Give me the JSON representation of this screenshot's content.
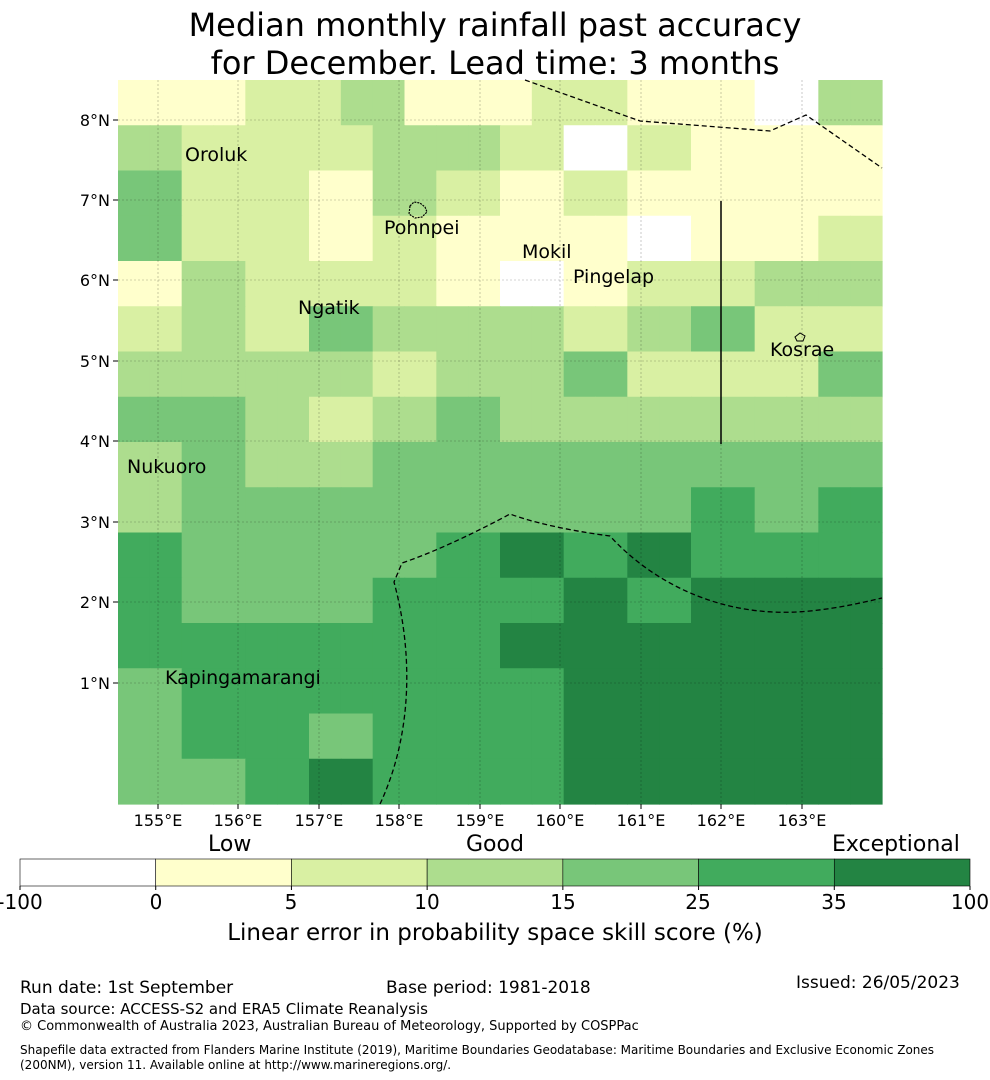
{
  "title": {
    "line1": "Median monthly rainfall past accuracy",
    "line2": "for December. Lead time: 3 months"
  },
  "map": {
    "y_axis_labels": [
      "8°N",
      "7°N",
      "6°N",
      "5°N",
      "4°N",
      "3°N",
      "2°N",
      "1°N"
    ],
    "x_axis_labels": [
      "155°E",
      "156°E",
      "157°E",
      "158°E",
      "159°E",
      "160°E",
      "161°E",
      "162°E",
      "163°E"
    ],
    "places": [
      {
        "name": "Oroluk"
      },
      {
        "name": "Pohnpei"
      },
      {
        "name": "Mokil"
      },
      {
        "name": "Pingelap"
      },
      {
        "name": "Ngatik"
      },
      {
        "name": "Kosrae"
      },
      {
        "name": "Nukuoro"
      },
      {
        "name": "Kapingamarangi"
      }
    ],
    "category_colors": [
      "#ffffff",
      "#ffffcc",
      "#d9f0a3",
      "#addd8e",
      "#78c679",
      "#41ab5d",
      "#238443"
    ],
    "grid": [
      [
        1,
        1,
        1,
        1,
        2,
        2,
        2,
        3,
        3,
        1,
        1,
        1,
        1,
        2,
        2,
        2,
        1,
        1,
        1,
        1,
        0,
        0,
        3,
        3
      ],
      [
        3,
        3,
        2,
        2,
        2,
        2,
        2,
        2,
        3,
        3,
        3,
        3,
        2,
        2,
        0,
        0,
        2,
        2,
        1,
        1,
        1,
        1,
        1,
        1
      ],
      [
        4,
        4,
        2,
        2,
        2,
        2,
        1,
        1,
        3,
        3,
        2,
        2,
        1,
        1,
        2,
        2,
        1,
        1,
        1,
        1,
        1,
        1,
        1,
        1
      ],
      [
        4,
        4,
        2,
        2,
        2,
        2,
        1,
        1,
        2,
        2,
        1,
        1,
        1,
        1,
        1,
        1,
        0,
        0,
        1,
        1,
        1,
        1,
        2,
        2
      ],
      [
        1,
        1,
        3,
        3,
        2,
        2,
        2,
        2,
        2,
        2,
        1,
        1,
        0,
        0,
        1,
        1,
        2,
        2,
        2,
        2,
        3,
        3,
        3,
        3
      ],
      [
        2,
        2,
        3,
        3,
        2,
        2,
        4,
        4,
        3,
        3,
        3,
        3,
        3,
        3,
        2,
        2,
        3,
        3,
        4,
        4,
        2,
        2,
        2,
        2
      ],
      [
        3,
        3,
        3,
        3,
        3,
        3,
        3,
        3,
        2,
        2,
        3,
        3,
        3,
        3,
        4,
        4,
        2,
        2,
        2,
        2,
        2,
        2,
        4,
        4
      ],
      [
        4,
        4,
        4,
        4,
        3,
        3,
        2,
        2,
        3,
        3,
        4,
        4,
        3,
        3,
        3,
        3,
        3,
        3,
        3,
        3,
        3,
        3,
        3,
        3
      ],
      [
        3,
        3,
        4,
        4,
        3,
        3,
        3,
        3,
        4,
        4,
        4,
        4,
        4,
        4,
        4,
        4,
        4,
        4,
        4,
        4,
        4,
        4,
        4,
        4
      ],
      [
        3,
        3,
        4,
        4,
        4,
        4,
        4,
        4,
        4,
        4,
        4,
        4,
        4,
        4,
        4,
        4,
        4,
        4,
        5,
        5,
        4,
        4,
        5,
        5
      ],
      [
        5,
        5,
        4,
        4,
        4,
        4,
        4,
        4,
        4,
        4,
        5,
        5,
        6,
        6,
        5,
        5,
        6,
        6,
        5,
        5,
        5,
        5,
        5,
        5
      ],
      [
        5,
        5,
        4,
        4,
        4,
        4,
        4,
        4,
        5,
        5,
        5,
        5,
        5,
        5,
        6,
        6,
        5,
        5,
        6,
        6,
        6,
        6,
        6,
        6
      ],
      [
        5,
        5,
        5,
        5,
        5,
        5,
        5,
        5,
        5,
        5,
        5,
        5,
        6,
        6,
        6,
        6,
        6,
        6,
        6,
        6,
        6,
        6,
        6,
        6
      ],
      [
        4,
        4,
        5,
        5,
        5,
        5,
        5,
        5,
        5,
        5,
        5,
        5,
        5,
        5,
        6,
        6,
        6,
        6,
        6,
        6,
        6,
        6,
        6,
        6
      ],
      [
        4,
        4,
        5,
        5,
        5,
        5,
        4,
        4,
        5,
        5,
        5,
        5,
        5,
        5,
        6,
        6,
        6,
        6,
        6,
        6,
        6,
        6,
        6,
        6
      ],
      [
        4,
        4,
        4,
        4,
        5,
        5,
        6,
        6,
        5,
        5,
        5,
        5,
        5,
        5,
        6,
        6,
        6,
        6,
        6,
        6,
        6,
        6,
        6,
        6
      ]
    ]
  },
  "legend": {
    "low_label": "Low",
    "good_label": "Good",
    "exceptional_label": "Exceptional",
    "ticks": [
      "-100",
      "0",
      "5",
      "10",
      "15",
      "25",
      "35",
      "100"
    ],
    "colors": [
      "#ffffff",
      "#ffffcc",
      "#d9f0a3",
      "#addd8e",
      "#78c679",
      "#41ab5d",
      "#238443"
    ],
    "title": "Linear error in probability space skill score (%)"
  },
  "footer": {
    "run_date": "Run date: 1st September",
    "base_period": "Base period: 1981-2018",
    "issued": "Issued: 26/05/2023",
    "data_source": "Data source: ACCESS-S2 and ERA5 Climate Reanalysis",
    "copyright": "© Commonwealth of Australia 2023, Australian Bureau of Meteorology, Supported by COSPPac",
    "shapefile_line1": "Shapefile data extracted from Flanders Marine Institute (2019), Maritime Boundaries Geodatabase: Maritime Boundaries and Exclusive Economic Zones",
    "shapefile_line2": "(200NM), version 11. Available online at http://www.marineregions.org/."
  }
}
